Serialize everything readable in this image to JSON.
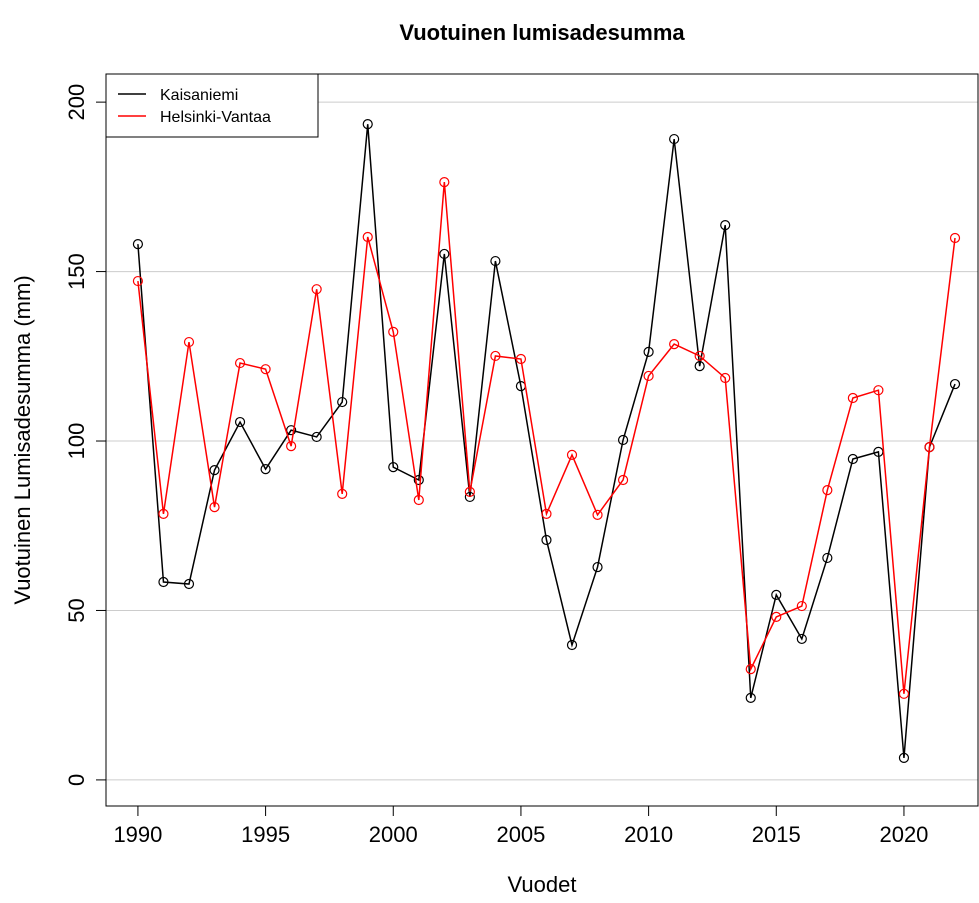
{
  "chart_data": {
    "type": "line",
    "title": "Vuotuinen lumisadesumma",
    "x_label": "Vuodet",
    "y_label": "Vuotuinen Lumisadesumma (mm)",
    "x": [
      1990,
      1991,
      1992,
      1993,
      1994,
      1995,
      1996,
      1997,
      1998,
      1999,
      2000,
      2001,
      2002,
      2003,
      2004,
      2005,
      2006,
      2007,
      2008,
      2009,
      2010,
      2011,
      2012,
      2013,
      2014,
      2015,
      2016,
      2017,
      2018,
      2019,
      2020,
      2021,
      2022
    ],
    "series": [
      {
        "name": "Kaisaniemi",
        "color": "#000000",
        "values": [
          158.1,
          58.4,
          57.8,
          91.4,
          105.6,
          91.7,
          103.2,
          101.2,
          111.5,
          193.5,
          92.3,
          88.5,
          155.2,
          83.5,
          153.1,
          116.2,
          70.8,
          39.8,
          62.8,
          100.3,
          126.3,
          189.1,
          122.1,
          163.7,
          24.2,
          54.6,
          41.6,
          65.5,
          94.7,
          96.8,
          6.5,
          98.2,
          116.8
        ]
      },
      {
        "name": "Helsinki-Vantaa",
        "color": "#ff0000",
        "values": [
          147.2,
          78.5,
          129.2,
          80.5,
          123,
          121.2,
          98.5,
          144.8,
          84.4,
          160.2,
          132.2,
          82.6,
          176.4,
          85,
          125.1,
          124.2,
          78.5,
          95.9,
          78.2,
          88.5,
          119.2,
          128.6,
          125.1,
          118.6,
          32.7,
          48.1,
          51.3,
          85.5,
          112.7,
          115,
          25.4,
          98.2,
          159.9
        ]
      }
    ],
    "xlim": [
      1988.75,
      2022.9
    ],
    "ylim": [
      -7.7,
      208.3
    ],
    "xticks": [
      1990,
      1995,
      2000,
      2005,
      2010,
      2015,
      2020
    ],
    "yticks": [
      0,
      50,
      100,
      150,
      200
    ],
    "grid": true,
    "legend": "top-left"
  }
}
